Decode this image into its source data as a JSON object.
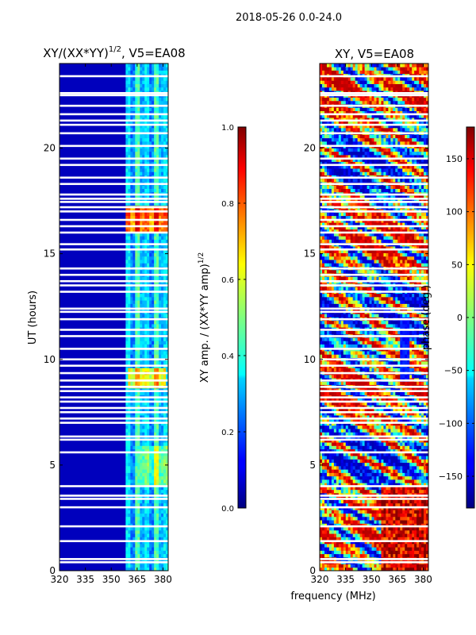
{
  "figure": {
    "suptitle": "2018-05-26 0.0-24.0",
    "xlabel": "frequency (MHz)"
  },
  "chart_data": [
    {
      "type": "heatmap",
      "title": "XY/(XX*YY)",
      "title_exponent": "1/2",
      "title_suffix": ", V5=EA08",
      "xlabel": "frequency (MHz)",
      "ylabel": "UT (hours)",
      "xlim": [
        320,
        383
      ],
      "ylim": [
        0,
        24
      ],
      "xticks": [
        320,
        335,
        350,
        365,
        380
      ],
      "yticks": [
        0,
        5,
        10,
        15,
        20
      ],
      "colorbar": {
        "label": "XY amp. / (XX*YY amp)",
        "label_exponent": "1/2",
        "range": [
          0.0,
          1.0
        ],
        "ticks": [
          "0.0",
          "0.2",
          "0.4",
          "0.6",
          "0.8",
          "1.0"
        ],
        "colormap": "jet"
      },
      "flagged_rows_hours": [
        0.4,
        0.55,
        1.4,
        2.1,
        3.0,
        3.4,
        3.55,
        4.0,
        5.6,
        6.2,
        6.35,
        7.0,
        7.2,
        7.5,
        7.7,
        8.0,
        8.2,
        8.5,
        8.7,
        9.0,
        9.35,
        9.7,
        10.0,
        10.5,
        11.1,
        11.4,
        11.9,
        12.25,
        12.4,
        13.2,
        13.5,
        13.7,
        14.0,
        14.3,
        15.2,
        15.45,
        16.0,
        16.3,
        16.6,
        17.0,
        17.2,
        17.45,
        17.6,
        17.8,
        18.3,
        18.6,
        19.2,
        19.5,
        20.1,
        20.7,
        21.1,
        21.3,
        21.6,
        22.0,
        22.5,
        22.6,
        23.4
      ]
    },
    {
      "type": "heatmap",
      "title": "XY, V5=EA08",
      "xlabel": "frequency (MHz)",
      "ylabel": "",
      "xlim": [
        320,
        383
      ],
      "ylim": [
        0,
        24
      ],
      "xticks": [
        320,
        335,
        350,
        365,
        380
      ],
      "yticks": [
        0,
        5,
        10,
        15,
        20
      ],
      "colorbar": {
        "label": "phase (deg.)",
        "range": [
          -180,
          180
        ],
        "ticks": [
          "−150",
          "−100",
          "−50",
          "0",
          "50",
          "100",
          "150"
        ],
        "colormap": "jet"
      },
      "flagged_rows_hours": [
        0.4,
        0.55,
        1.4,
        2.1,
        3.0,
        3.4,
        3.55,
        4.0,
        5.6,
        6.2,
        6.35,
        7.0,
        7.2,
        7.5,
        7.7,
        8.0,
        8.2,
        8.5,
        8.7,
        9.0,
        9.35,
        9.7,
        10.0,
        10.5,
        11.1,
        11.4,
        11.9,
        12.25,
        12.4,
        13.2,
        13.5,
        13.7,
        14.0,
        14.3,
        15.2,
        15.45,
        16.0,
        16.3,
        16.6,
        17.0,
        17.2,
        17.45,
        17.6,
        17.8,
        18.3,
        18.6,
        19.2,
        19.5,
        20.1,
        20.7,
        21.1,
        21.3,
        21.6,
        22.0,
        22.5,
        22.6,
        23.4
      ]
    }
  ]
}
